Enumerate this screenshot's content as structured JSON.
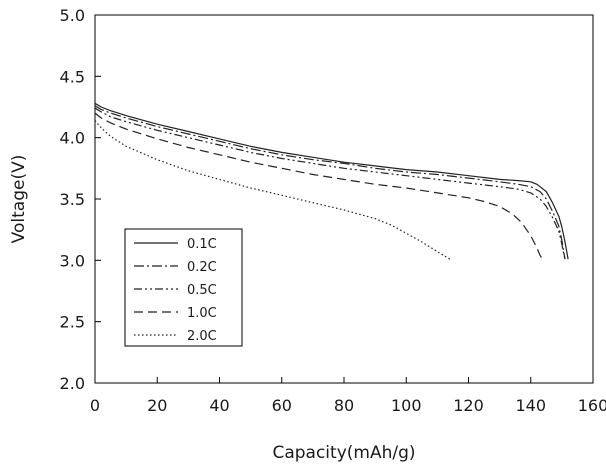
{
  "chart_data": {
    "type": "line",
    "title": "",
    "xlabel": "Capacity(mAh/g)",
    "ylabel": "Voltage(V)",
    "xlim": [
      0,
      160
    ],
    "ylim": [
      2.0,
      5.0
    ],
    "xticks": [
      "0",
      "20",
      "40",
      "60",
      "80",
      "100",
      "120",
      "140",
      "160"
    ],
    "yticks": [
      "2.0",
      "2.5",
      "3.0",
      "3.5",
      "4.0",
      "4.5",
      "5.0"
    ],
    "grid": false,
    "legend_position": "lower-left",
    "series": [
      {
        "name": "0.1C",
        "line_style": "solid",
        "color": "#222222",
        "x": [
          0,
          2,
          5,
          10,
          20,
          30,
          40,
          50,
          60,
          70,
          80,
          90,
          100,
          110,
          120,
          130,
          136,
          140,
          142,
          145,
          147,
          149,
          150,
          151,
          152
        ],
        "y": [
          4.28,
          4.25,
          4.22,
          4.18,
          4.11,
          4.05,
          3.99,
          3.93,
          3.88,
          3.84,
          3.8,
          3.77,
          3.74,
          3.72,
          3.69,
          3.66,
          3.65,
          3.64,
          3.62,
          3.56,
          3.47,
          3.36,
          3.27,
          3.15,
          3.01
        ]
      },
      {
        "name": "0.2C",
        "line_style": "dash-dot",
        "color": "#222222",
        "x": [
          0,
          2,
          5,
          10,
          20,
          30,
          40,
          50,
          60,
          70,
          80,
          90,
          100,
          110,
          120,
          130,
          136,
          140,
          143,
          145,
          147,
          149,
          150,
          151
        ],
        "y": [
          4.26,
          4.23,
          4.2,
          4.16,
          4.09,
          4.03,
          3.97,
          3.91,
          3.86,
          3.82,
          3.79,
          3.75,
          3.72,
          3.7,
          3.67,
          3.64,
          3.62,
          3.6,
          3.56,
          3.5,
          3.4,
          3.28,
          3.16,
          3.01
        ]
      },
      {
        "name": "0.5C",
        "line_style": "dash-dot-dot",
        "color": "#222222",
        "x": [
          0,
          2,
          5,
          10,
          20,
          30,
          40,
          50,
          60,
          70,
          80,
          90,
          100,
          110,
          120,
          130,
          136,
          140,
          143,
          145,
          147,
          149,
          150,
          151
        ],
        "y": [
          4.24,
          4.21,
          4.17,
          4.13,
          4.06,
          4.0,
          3.94,
          3.88,
          3.83,
          3.79,
          3.75,
          3.72,
          3.69,
          3.66,
          3.63,
          3.6,
          3.58,
          3.55,
          3.5,
          3.44,
          3.35,
          3.24,
          3.13,
          3.0
        ]
      },
      {
        "name": "1.0C",
        "line_style": "dashed",
        "color": "#222222",
        "x": [
          0,
          2,
          5,
          10,
          20,
          30,
          40,
          50,
          60,
          70,
          80,
          90,
          100,
          110,
          120,
          125,
          130,
          134,
          137,
          140,
          142,
          143,
          144
        ],
        "y": [
          4.2,
          4.16,
          4.12,
          4.07,
          3.99,
          3.92,
          3.86,
          3.8,
          3.75,
          3.7,
          3.66,
          3.62,
          3.59,
          3.55,
          3.51,
          3.48,
          3.44,
          3.38,
          3.31,
          3.2,
          3.1,
          3.04,
          3.0
        ]
      },
      {
        "name": "2.0C",
        "line_style": "dotted",
        "color": "#222222",
        "x": [
          0,
          2,
          5,
          10,
          20,
          30,
          40,
          50,
          60,
          70,
          80,
          90,
          95,
          100,
          105,
          110,
          114
        ],
        "y": [
          4.14,
          4.08,
          4.01,
          3.93,
          3.82,
          3.73,
          3.66,
          3.59,
          3.53,
          3.47,
          3.41,
          3.34,
          3.29,
          3.22,
          3.15,
          3.07,
          3.01
        ]
      }
    ]
  }
}
